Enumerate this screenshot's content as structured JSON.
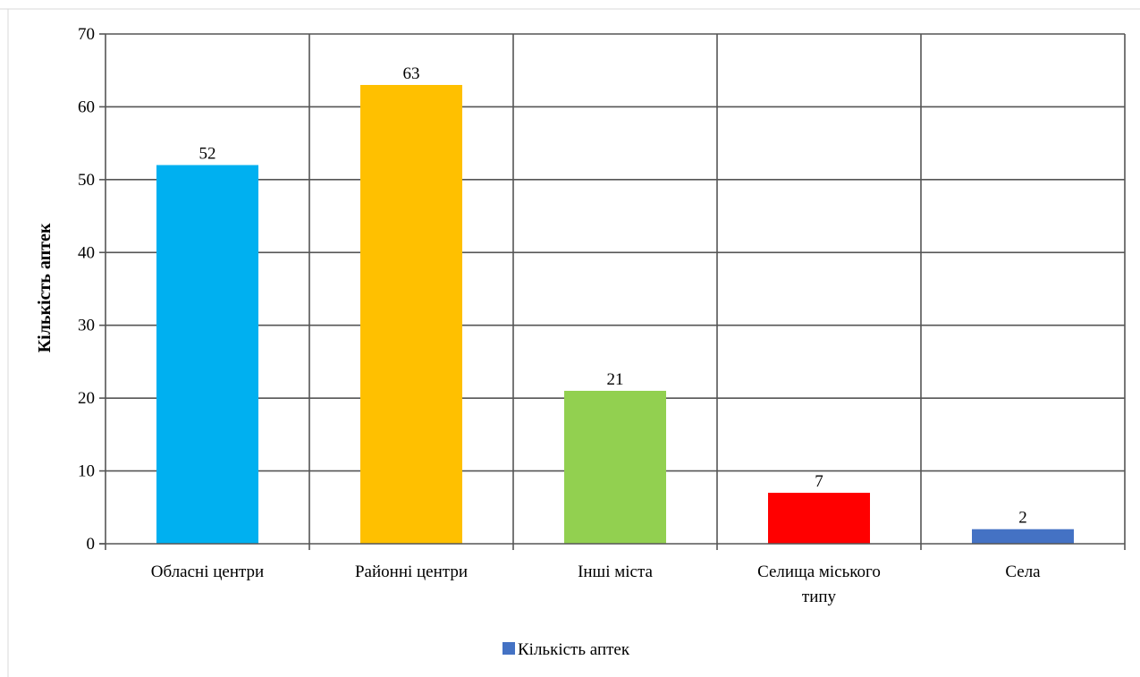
{
  "chart_data": {
    "type": "bar",
    "categories": [
      "Обласні центри",
      "Районні центри",
      "Інші міста",
      "Селища міського типу",
      "Села"
    ],
    "category_lines": [
      [
        "Обласні центри"
      ],
      [
        "Районні центри"
      ],
      [
        "Інші міста"
      ],
      [
        "Селища міського",
        "типу"
      ],
      [
        "Села"
      ]
    ],
    "series": [
      {
        "name": "Кількість аптек",
        "values": [
          52,
          63,
          21,
          7,
          2
        ],
        "colors": [
          "#00b0f0",
          "#ffc000",
          "#92d050",
          "#ff0000",
          "#4472c4"
        ]
      }
    ],
    "ylabel": "Кількість аптек",
    "xlabel": "",
    "ylim": [
      0,
      70
    ],
    "yticks": [
      0,
      10,
      20,
      30,
      40,
      50,
      60,
      70
    ],
    "data_labels": [
      "52",
      "63",
      "21",
      "7",
      "2"
    ],
    "grid": true,
    "legend": {
      "position": "bottom",
      "entries": [
        {
          "label": "Кількість аптек",
          "color": "#4472c4"
        }
      ]
    }
  }
}
